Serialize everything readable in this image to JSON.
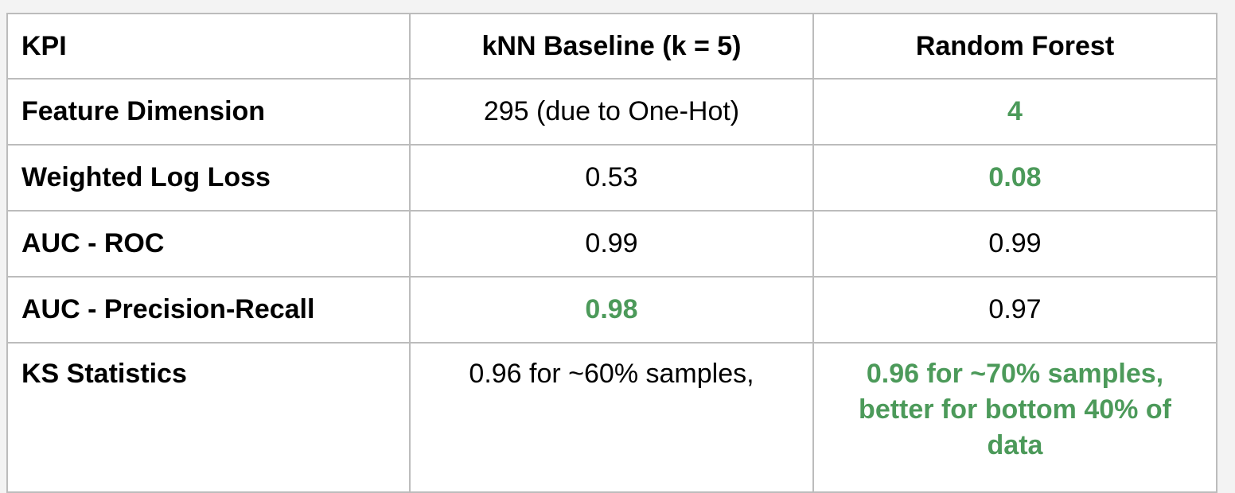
{
  "colors": {
    "best": "#4c9a5a",
    "border": "#bcbcbc",
    "background": "#f3f3f3"
  },
  "table": {
    "headers": [
      "KPI",
      "kNN Baseline (k = 5)",
      "Random Forest"
    ],
    "rows": [
      {
        "kpi": "Feature Dimension",
        "knn": "295 (due to One-Hot)",
        "rf": "4",
        "knn_best": false,
        "rf_best": true
      },
      {
        "kpi": "Weighted Log Loss",
        "knn": "0.53",
        "rf": "0.08",
        "knn_best": false,
        "rf_best": true
      },
      {
        "kpi": "AUC - ROC",
        "knn": "0.99",
        "rf": "0.99",
        "knn_best": false,
        "rf_best": false
      },
      {
        "kpi": "AUC - Precision-Recall",
        "knn": "0.98",
        "rf": "0.97",
        "knn_best": true,
        "rf_best": false
      },
      {
        "kpi": "KS Statistics",
        "knn": "0.96 for ~60% samples,",
        "rf": "0.96 for ~70% samples, better for bottom 40% of data",
        "knn_best": false,
        "rf_best": true
      }
    ]
  }
}
